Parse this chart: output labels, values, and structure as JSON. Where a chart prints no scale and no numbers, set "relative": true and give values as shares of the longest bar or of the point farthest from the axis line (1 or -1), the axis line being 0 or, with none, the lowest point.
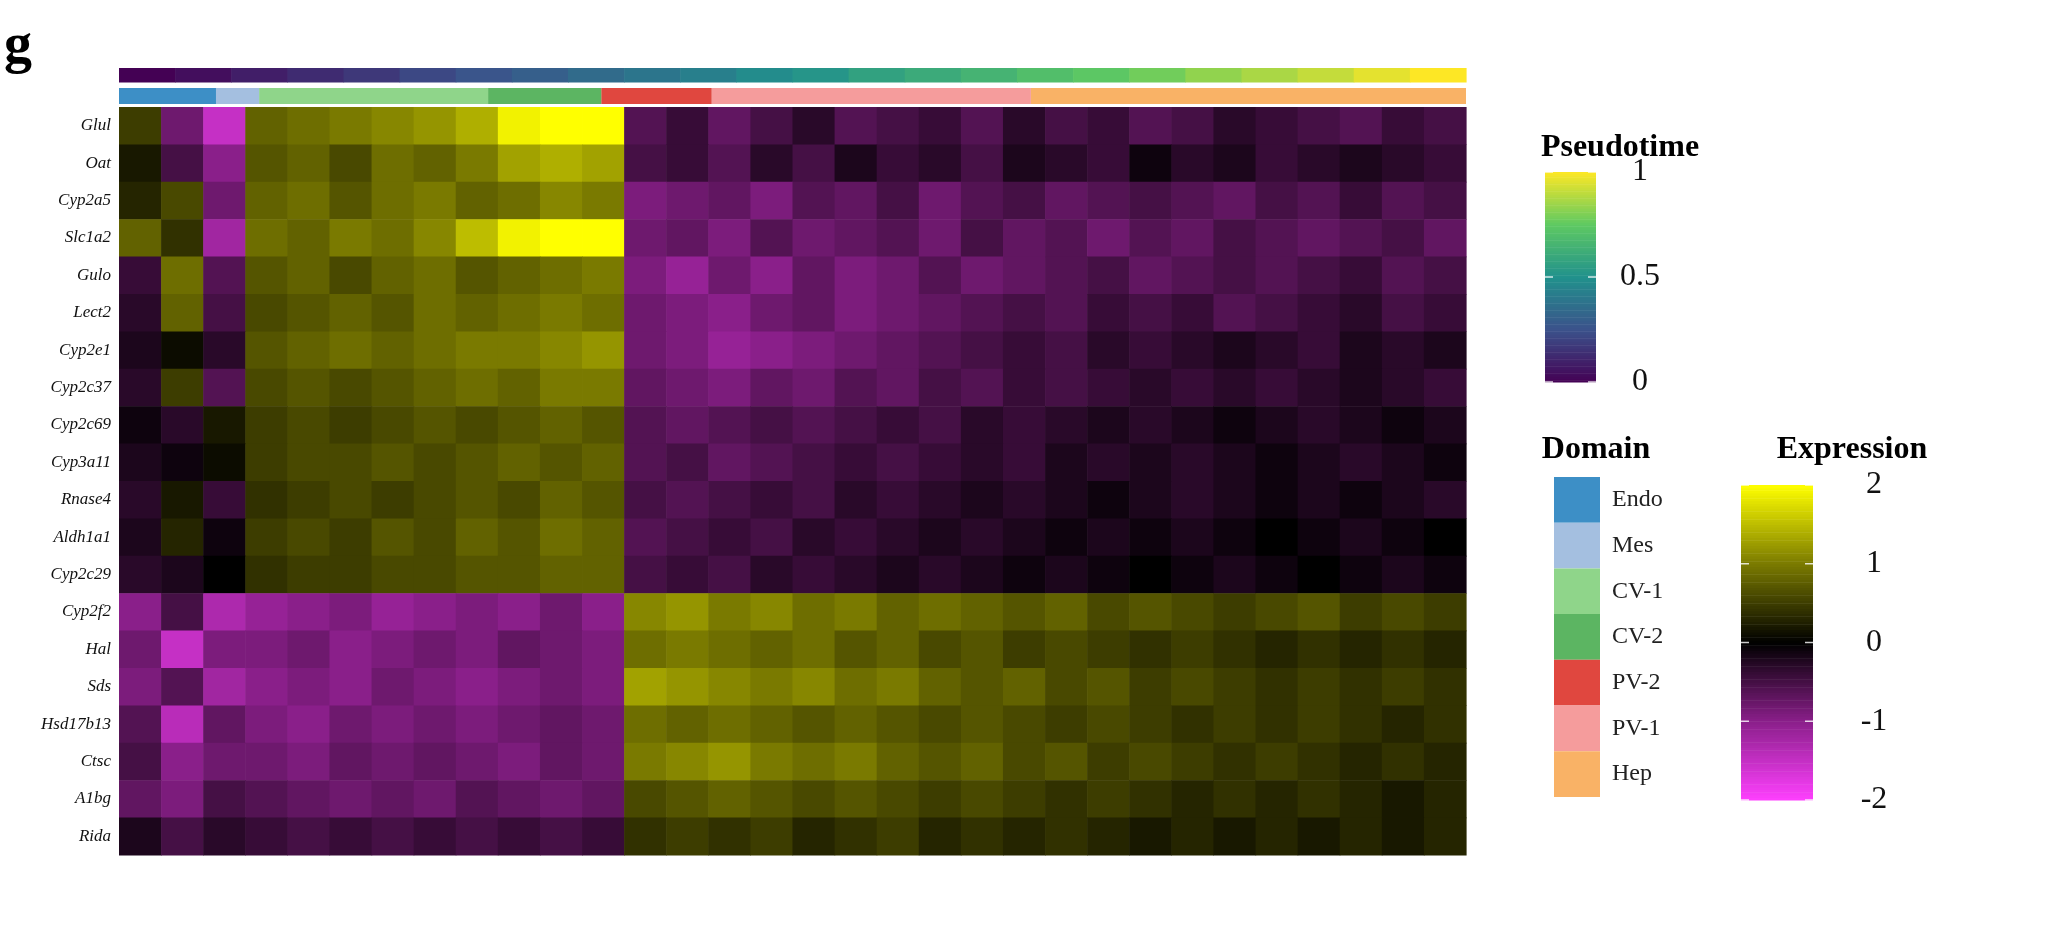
{
  "chart_data": [
    {
      "type": "heatmap",
      "categories": [
        null,
        null,
        null,
        null,
        null,
        null,
        null,
        null,
        null,
        null,
        null,
        null,
        null,
        null,
        null,
        null,
        null,
        null,
        null,
        null,
        null,
        null,
        null,
        null
      ],
      "y_categories": [
        null
      ],
      "cells": [
        [
          0,
          0.04,
          0.09,
          0.13,
          0.17,
          0.22,
          0.26,
          0.3,
          0.35,
          0.39,
          0.43,
          0.48,
          0.52,
          0.57,
          0.61,
          0.65,
          0.7,
          0.74,
          0.78,
          0.83,
          0.87,
          0.91,
          0.96,
          1
        ]
      ],
      "clim": [
        0,
        1
      ],
      "cticks": [
        0,
        0.5,
        1
      ],
      "clabel": "Pseudotime"
    },
    {
      "type": "bar",
      "orientation": "horizontal",
      "relative": true,
      "categories": [
        null
      ],
      "legend": "right",
      "legend_title": "Domain",
      "series": [
        {
          "name": "Endo",
          "color": "#3d8fc6",
          "values": [
            0.072
          ]
        },
        {
          "name": "Mes",
          "color": "#a4bfe0",
          "values": [
            0.032
          ]
        },
        {
          "name": "CV-1",
          "color": "#8fd58a",
          "values": [
            0.17
          ]
        },
        {
          "name": "CV-2",
          "color": "#5cb562",
          "values": [
            0.084
          ]
        },
        {
          "name": "PV-2",
          "color": "#e0473f",
          "values": [
            0.082
          ]
        },
        {
          "name": "PV-1",
          "color": "#f59c9c",
          "values": [
            0.237
          ]
        },
        {
          "name": "Hep",
          "color": "#f9b266",
          "values": [
            0.323
          ]
        }
      ],
      "stacked": true
    },
    {
      "type": "heatmap",
      "annotations": [
        "g"
      ],
      "clabel": "Expression",
      "clim": [
        -2,
        2
      ],
      "cticks": [
        -2,
        -1,
        0,
        1,
        2
      ],
      "categories": [
        null,
        null,
        null,
        null,
        null,
        null,
        null,
        null,
        null,
        null,
        null,
        null,
        null,
        null,
        null,
        null,
        null,
        null,
        null,
        null,
        null,
        null,
        null,
        null,
        null,
        null,
        null,
        null,
        null,
        null,
        null,
        null
      ],
      "y_categories": [
        "Glul",
        "Oat",
        "Cyp2a5",
        "Slc1a2",
        "Gulo",
        "Lect2",
        "Cyp2e1",
        "Cyp2c37",
        "Cyp2c69",
        "Cyp3a11",
        "Rnase4",
        "Aldh1a1",
        "Cyp2c29",
        "Cyp2f2",
        "Hal",
        "Sds",
        "Hsd17b13",
        "Ctsc",
        "A1bg",
        "Rida"
      ],
      "cells": [
        [
          0.5,
          -0.8,
          -1.5,
          0.8,
          0.9,
          1.0,
          1.1,
          1.2,
          1.4,
          1.9,
          2.0,
          2.0,
          -0.6,
          -0.4,
          -0.7,
          -0.5,
          -0.3,
          -0.6,
          -0.5,
          -0.4,
          -0.6,
          -0.3,
          -0.5,
          -0.4,
          -0.6,
          -0.5,
          -0.3,
          -0.4,
          -0.5,
          -0.6,
          -0.4,
          -0.5
        ],
        [
          0.2,
          -0.5,
          -1.0,
          0.7,
          0.8,
          0.6,
          0.9,
          0.8,
          1.0,
          1.3,
          1.4,
          1.3,
          -0.5,
          -0.4,
          -0.6,
          -0.3,
          -0.5,
          -0.2,
          -0.4,
          -0.3,
          -0.5,
          -0.2,
          -0.3,
          -0.4,
          -0.1,
          -0.3,
          -0.2,
          -0.4,
          -0.3,
          -0.2,
          -0.3,
          -0.4
        ],
        [
          0.3,
          0.6,
          -0.8,
          0.8,
          0.9,
          0.7,
          0.9,
          1.0,
          0.8,
          0.9,
          1.1,
          1.0,
          -0.9,
          -0.8,
          -0.7,
          -0.9,
          -0.6,
          -0.7,
          -0.5,
          -0.8,
          -0.6,
          -0.5,
          -0.7,
          -0.6,
          -0.5,
          -0.6,
          -0.7,
          -0.5,
          -0.6,
          -0.4,
          -0.6,
          -0.5
        ],
        [
          0.8,
          0.4,
          -1.2,
          0.9,
          0.8,
          1.0,
          0.9,
          1.1,
          1.5,
          1.9,
          2.0,
          2.0,
          -0.8,
          -0.7,
          -0.9,
          -0.6,
          -0.8,
          -0.7,
          -0.6,
          -0.8,
          -0.5,
          -0.7,
          -0.6,
          -0.8,
          -0.6,
          -0.7,
          -0.5,
          -0.6,
          -0.7,
          -0.6,
          -0.5,
          -0.7
        ],
        [
          -0.4,
          0.9,
          -0.6,
          0.7,
          0.8,
          0.6,
          0.8,
          0.9,
          0.7,
          0.8,
          0.9,
          1.0,
          -0.9,
          -1.1,
          -0.8,
          -1.0,
          -0.7,
          -0.9,
          -0.8,
          -0.6,
          -0.8,
          -0.7,
          -0.6,
          -0.5,
          -0.7,
          -0.6,
          -0.5,
          -0.6,
          -0.5,
          -0.4,
          -0.6,
          -0.5
        ],
        [
          -0.3,
          0.8,
          -0.5,
          0.6,
          0.7,
          0.8,
          0.7,
          0.9,
          0.8,
          0.9,
          1.0,
          0.9,
          -0.8,
          -0.9,
          -1.0,
          -0.8,
          -0.7,
          -0.9,
          -0.8,
          -0.7,
          -0.6,
          -0.5,
          -0.6,
          -0.4,
          -0.5,
          -0.4,
          -0.6,
          -0.5,
          -0.4,
          -0.3,
          -0.5,
          -0.4
        ],
        [
          -0.2,
          0.1,
          -0.3,
          0.7,
          0.8,
          0.9,
          0.8,
          0.9,
          1.0,
          1.0,
          1.1,
          1.2,
          -0.8,
          -0.9,
          -1.1,
          -1.0,
          -0.9,
          -0.8,
          -0.7,
          -0.6,
          -0.5,
          -0.4,
          -0.5,
          -0.3,
          -0.4,
          -0.3,
          -0.2,
          -0.3,
          -0.4,
          -0.2,
          -0.3,
          -0.2
        ],
        [
          -0.3,
          0.5,
          -0.6,
          0.6,
          0.7,
          0.6,
          0.7,
          0.8,
          0.9,
          0.8,
          1.0,
          1.0,
          -0.7,
          -0.8,
          -0.9,
          -0.7,
          -0.8,
          -0.6,
          -0.7,
          -0.5,
          -0.6,
          -0.4,
          -0.5,
          -0.4,
          -0.3,
          -0.4,
          -0.3,
          -0.4,
          -0.3,
          -0.2,
          -0.3,
          -0.4
        ],
        [
          -0.1,
          -0.3,
          0.2,
          0.5,
          0.6,
          0.5,
          0.6,
          0.7,
          0.6,
          0.7,
          0.8,
          0.7,
          -0.6,
          -0.7,
          -0.6,
          -0.5,
          -0.6,
          -0.5,
          -0.4,
          -0.5,
          -0.3,
          -0.4,
          -0.3,
          -0.2,
          -0.3,
          -0.2,
          -0.1,
          -0.2,
          -0.3,
          -0.2,
          -0.1,
          -0.2
        ],
        [
          -0.2,
          -0.1,
          0.1,
          0.5,
          0.6,
          0.6,
          0.7,
          0.6,
          0.7,
          0.8,
          0.7,
          0.8,
          -0.6,
          -0.5,
          -0.7,
          -0.6,
          -0.5,
          -0.4,
          -0.5,
          -0.4,
          -0.3,
          -0.4,
          -0.2,
          -0.3,
          -0.2,
          -0.3,
          -0.2,
          -0.1,
          -0.2,
          -0.3,
          -0.2,
          -0.1
        ],
        [
          -0.3,
          0.2,
          -0.4,
          0.4,
          0.5,
          0.6,
          0.5,
          0.6,
          0.7,
          0.6,
          0.8,
          0.7,
          -0.5,
          -0.6,
          -0.5,
          -0.4,
          -0.5,
          -0.3,
          -0.4,
          -0.3,
          -0.2,
          -0.3,
          -0.2,
          -0.1,
          -0.2,
          -0.3,
          -0.2,
          -0.1,
          -0.2,
          -0.1,
          -0.2,
          -0.3
        ],
        [
          -0.2,
          0.3,
          -0.1,
          0.5,
          0.6,
          0.5,
          0.7,
          0.6,
          0.8,
          0.7,
          0.9,
          0.8,
          -0.6,
          -0.5,
          -0.4,
          -0.5,
          -0.3,
          -0.4,
          -0.3,
          -0.2,
          -0.3,
          -0.2,
          -0.1,
          -0.2,
          -0.1,
          -0.2,
          -0.1,
          0.0,
          -0.1,
          -0.2,
          -0.1,
          0.0
        ],
        [
          -0.3,
          -0.2,
          0.0,
          0.4,
          0.5,
          0.5,
          0.6,
          0.6,
          0.7,
          0.7,
          0.8,
          0.8,
          -0.5,
          -0.4,
          -0.5,
          -0.3,
          -0.4,
          -0.3,
          -0.2,
          -0.3,
          -0.2,
          -0.1,
          -0.2,
          -0.1,
          0.0,
          -0.1,
          -0.2,
          -0.1,
          0.0,
          -0.1,
          -0.2,
          -0.1
        ],
        [
          -1.0,
          -0.5,
          -1.3,
          -1.1,
          -1.0,
          -0.9,
          -1.1,
          -1.0,
          -0.9,
          -1.0,
          -0.8,
          -1.0,
          1.1,
          1.2,
          1.0,
          1.1,
          0.9,
          1.0,
          0.8,
          0.9,
          0.8,
          0.7,
          0.8,
          0.6,
          0.7,
          0.6,
          0.5,
          0.6,
          0.7,
          0.5,
          0.6,
          0.5
        ],
        [
          -0.8,
          -1.5,
          -0.9,
          -0.9,
          -0.8,
          -1.0,
          -0.9,
          -0.8,
          -0.9,
          -0.7,
          -0.8,
          -0.9,
          0.9,
          1.0,
          0.9,
          0.8,
          0.9,
          0.7,
          0.8,
          0.6,
          0.7,
          0.5,
          0.6,
          0.5,
          0.4,
          0.5,
          0.4,
          0.3,
          0.4,
          0.3,
          0.4,
          0.3
        ],
        [
          -0.9,
          -0.6,
          -1.2,
          -1.0,
          -0.9,
          -1.0,
          -0.8,
          -0.9,
          -1.0,
          -0.9,
          -0.8,
          -0.9,
          1.3,
          1.2,
          1.1,
          1.0,
          1.1,
          0.9,
          1.0,
          0.8,
          0.7,
          0.8,
          0.6,
          0.7,
          0.5,
          0.6,
          0.5,
          0.4,
          0.5,
          0.4,
          0.5,
          0.4
        ],
        [
          -0.6,
          -1.4,
          -0.7,
          -0.9,
          -1.0,
          -0.8,
          -0.9,
          -0.8,
          -0.9,
          -0.8,
          -0.7,
          -0.8,
          0.9,
          0.8,
          0.9,
          0.8,
          0.7,
          0.8,
          0.7,
          0.6,
          0.7,
          0.6,
          0.5,
          0.6,
          0.5,
          0.4,
          0.5,
          0.4,
          0.5,
          0.4,
          0.3,
          0.4
        ],
        [
          -0.5,
          -1.0,
          -0.8,
          -0.8,
          -0.9,
          -0.7,
          -0.8,
          -0.7,
          -0.8,
          -0.9,
          -0.7,
          -0.8,
          1.0,
          1.1,
          1.2,
          1.0,
          0.9,
          1.0,
          0.8,
          0.7,
          0.8,
          0.6,
          0.7,
          0.5,
          0.6,
          0.5,
          0.4,
          0.5,
          0.4,
          0.3,
          0.4,
          0.3
        ],
        [
          -0.7,
          -0.9,
          -0.5,
          -0.6,
          -0.7,
          -0.8,
          -0.7,
          -0.8,
          -0.6,
          -0.7,
          -0.8,
          -0.7,
          0.6,
          0.7,
          0.8,
          0.7,
          0.6,
          0.7,
          0.6,
          0.5,
          0.6,
          0.5,
          0.4,
          0.5,
          0.4,
          0.3,
          0.4,
          0.3,
          0.4,
          0.3,
          0.2,
          0.3
        ],
        [
          -0.2,
          -0.5,
          -0.3,
          -0.4,
          -0.5,
          -0.4,
          -0.5,
          -0.4,
          -0.5,
          -0.4,
          -0.5,
          -0.4,
          0.4,
          0.5,
          0.4,
          0.5,
          0.3,
          0.4,
          0.5,
          0.3,
          0.4,
          0.3,
          0.4,
          0.3,
          0.2,
          0.3,
          0.2,
          0.3,
          0.2,
          0.3,
          0.2,
          0.3
        ]
      ]
    }
  ]
}
